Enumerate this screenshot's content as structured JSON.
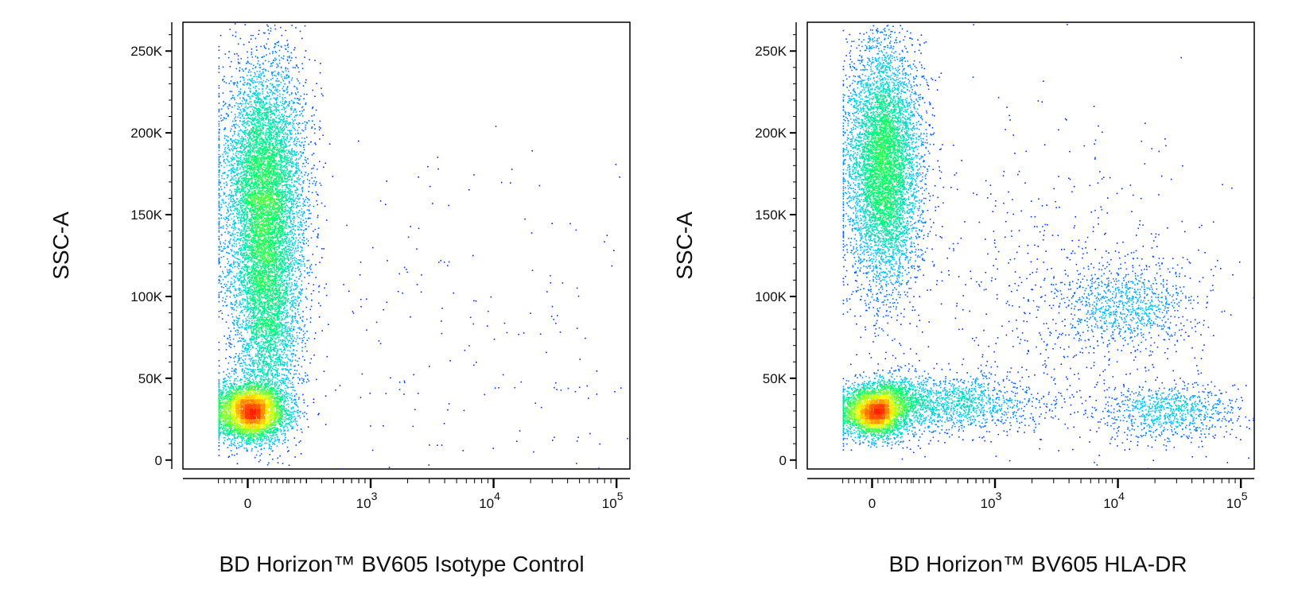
{
  "chart_data": [
    {
      "type": "scatter",
      "subtype": "flow-cytometry-density-dot-plot",
      "xlabel": "BD Horizon™ BV605 Isotype Control",
      "ylabel": "SSC-A",
      "x_scale": "biexponential",
      "xlim": [
        -150,
        150000
      ],
      "ylim": [
        0,
        262144
      ],
      "x_ticks": [
        {
          "value": 0,
          "label": "0"
        },
        {
          "value": 1000,
          "label": "10",
          "exp": "3"
        },
        {
          "value": 10000,
          "label": "10",
          "exp": "4"
        },
        {
          "value": 100000,
          "label": "10",
          "exp": "5"
        }
      ],
      "y_ticks": [
        {
          "value": 0,
          "label": "0"
        },
        {
          "value": 50000,
          "label": "50K"
        },
        {
          "value": 100000,
          "label": "100K"
        },
        {
          "value": 150000,
          "label": "150K"
        },
        {
          "value": 200000,
          "label": "200K"
        },
        {
          "value": 250000,
          "label": "250K"
        }
      ],
      "density_colors": [
        "#0000ff",
        "#00c8ff",
        "#00ff64",
        "#ffff00",
        "#ff2000"
      ],
      "populations": [
        {
          "x_center": 80,
          "x_spread": 0.18,
          "y_center": 165000,
          "y_spread": 40000,
          "weight": 0.5
        },
        {
          "x_center": 10,
          "x_spread": 0.16,
          "y_center": 30000,
          "y_spread": 9000,
          "weight": 0.3
        },
        {
          "x_center": 100,
          "x_spread": 0.14,
          "y_center": 85000,
          "y_spread": 30000,
          "weight": 0.18
        },
        {
          "x_center": 4000,
          "x_spread": 1.2,
          "y_center": 80000,
          "y_spread": 60000,
          "weight": 0.02
        }
      ]
    },
    {
      "type": "scatter",
      "subtype": "flow-cytometry-density-dot-plot",
      "xlabel": "BD Horizon™ BV605 HLA-DR",
      "ylabel": "SSC-A",
      "x_scale": "biexponential",
      "xlim": [
        -150,
        150000
      ],
      "ylim": [
        0,
        262144
      ],
      "x_ticks": [
        {
          "value": 0,
          "label": "0"
        },
        {
          "value": 1000,
          "label": "10",
          "exp": "3"
        },
        {
          "value": 10000,
          "label": "10",
          "exp": "4"
        },
        {
          "value": 100000,
          "label": "10",
          "exp": "5"
        }
      ],
      "y_ticks": [
        {
          "value": 0,
          "label": "0"
        },
        {
          "value": 50000,
          "label": "50K"
        },
        {
          "value": 100000,
          "label": "100K"
        },
        {
          "value": 150000,
          "label": "150K"
        },
        {
          "value": 200000,
          "label": "200K"
        },
        {
          "value": 250000,
          "label": "250K"
        }
      ],
      "density_colors": [
        "#0000ff",
        "#00c8ff",
        "#00ff64",
        "#ffff00",
        "#ff2000"
      ],
      "populations": [
        {
          "x_center": 60,
          "x_spread": 0.16,
          "y_center": 180000,
          "y_spread": 38000,
          "weight": 0.45
        },
        {
          "x_center": 5,
          "x_spread": 0.14,
          "y_center": 30000,
          "y_spread": 8000,
          "weight": 0.24
        },
        {
          "x_center": 300,
          "x_spread": 0.45,
          "y_center": 35000,
          "y_spread": 9000,
          "weight": 0.13
        },
        {
          "x_center": 12000,
          "x_spread": 0.3,
          "y_center": 95000,
          "y_spread": 14000,
          "weight": 0.07
        },
        {
          "x_center": 25000,
          "x_spread": 0.3,
          "y_center": 30000,
          "y_spread": 9000,
          "weight": 0.07
        },
        {
          "x_center": 3000,
          "x_spread": 0.6,
          "y_center": 100000,
          "y_spread": 55000,
          "weight": 0.04
        }
      ]
    }
  ]
}
